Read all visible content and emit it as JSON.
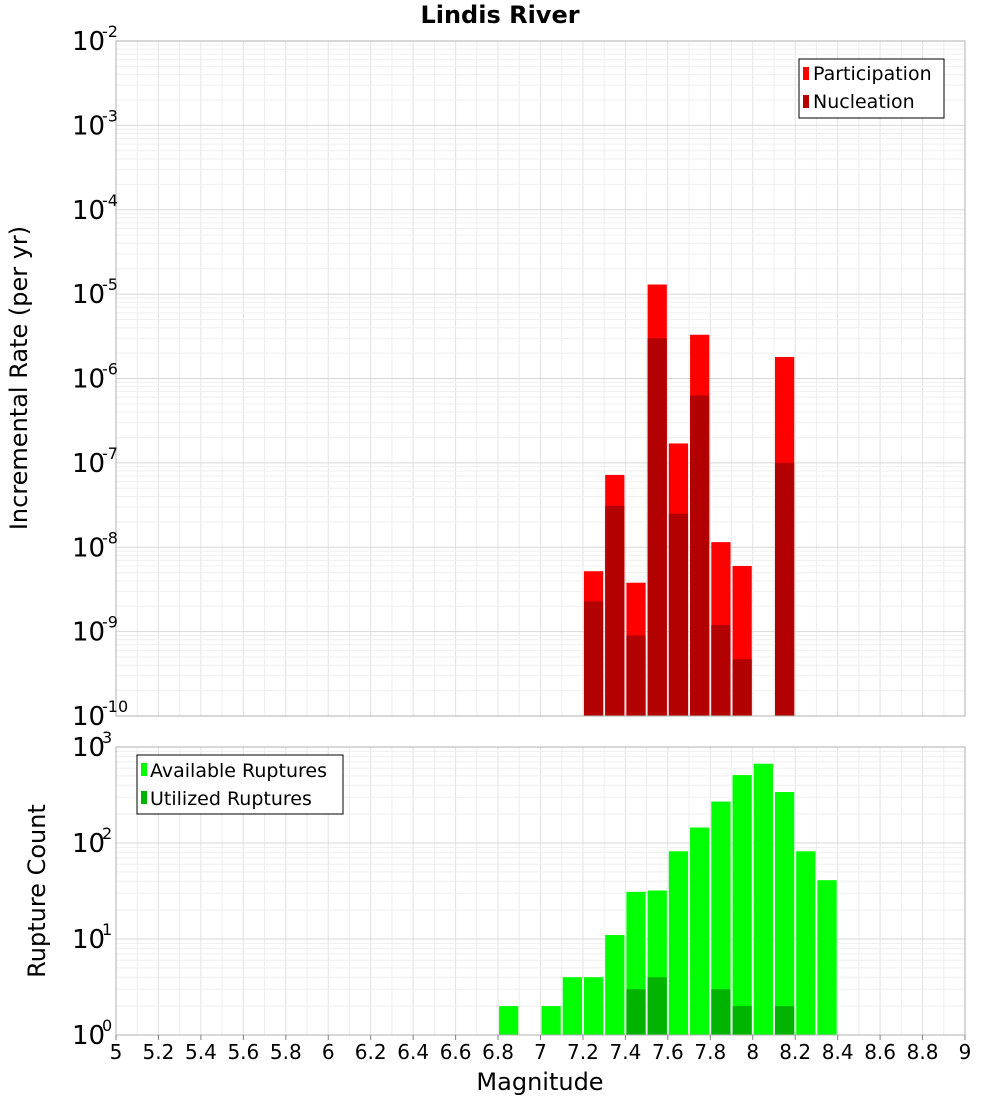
{
  "chart_data": [
    {
      "type": "bar",
      "title": "Lindis River",
      "ylabel": "Incremental Rate (per yr)",
      "yscale": "log",
      "ylim_exponents": [
        -10,
        -2
      ],
      "ytick_exponents": [
        -10,
        -9,
        -8,
        -7,
        -6,
        -5,
        -4,
        -3,
        -2
      ],
      "xlim": [
        5,
        9
      ],
      "bar_width": 0.1,
      "grid": true,
      "legend": "top-right",
      "series": [
        {
          "name": "Participation",
          "color": "#ff0000",
          "x": [
            7.25,
            7.35,
            7.45,
            7.55,
            7.65,
            7.75,
            7.85,
            7.95,
            8.15
          ],
          "values": [
            5.2e-09,
            7.2e-08,
            3.8e-09,
            1.3e-05,
            1.7e-07,
            3.3e-06,
            1.15e-08,
            6e-09,
            1.8e-06
          ]
        },
        {
          "name": "Nucleation",
          "color": "#b30000",
          "x": [
            7.25,
            7.35,
            7.45,
            7.55,
            7.65,
            7.75,
            7.85,
            7.95,
            8.15
          ],
          "values": [
            2.3e-09,
            3.1e-08,
            9e-10,
            3e-06,
            2.5e-08,
            6.3e-07,
            1.2e-09,
            4.7e-10,
            1e-07
          ]
        }
      ]
    },
    {
      "type": "bar",
      "xlabel": "Magnitude",
      "ylabel": "Rupture Count",
      "yscale": "log",
      "ylim_exponents": [
        0,
        3
      ],
      "ytick_exponents": [
        0,
        1,
        2,
        3
      ],
      "xlim": [
        5,
        9
      ],
      "xticks": [
        "5",
        "5.2",
        "5.4",
        "5.6",
        "5.8",
        "6",
        "6.2",
        "6.4",
        "6.6",
        "6.8",
        "7",
        "7.2",
        "7.4",
        "7.6",
        "7.8",
        "8",
        "8.2",
        "8.4",
        "8.6",
        "8.8",
        "9"
      ],
      "bar_width": 0.1,
      "grid": true,
      "legend": "top-left",
      "series": [
        {
          "name": "Available Ruptures",
          "color": "#00ff00",
          "x": [
            6.85,
            7.05,
            7.15,
            7.25,
            7.35,
            7.45,
            7.55,
            7.65,
            7.75,
            7.85,
            7.95,
            8.05,
            8.15,
            8.25,
            8.35
          ],
          "values": [
            2,
            2,
            4,
            4,
            11,
            31,
            32,
            82,
            145,
            270,
            510,
            670,
            340,
            82,
            41
          ]
        },
        {
          "name": "Utilized Ruptures",
          "color": "#00b300",
          "x": [
            7.15,
            7.25,
            7.35,
            7.45,
            7.55,
            7.65,
            7.75,
            7.85,
            7.95,
            8.15
          ],
          "values": [
            1,
            1,
            1,
            3,
            4,
            1,
            1,
            3,
            2,
            2
          ]
        }
      ]
    }
  ]
}
